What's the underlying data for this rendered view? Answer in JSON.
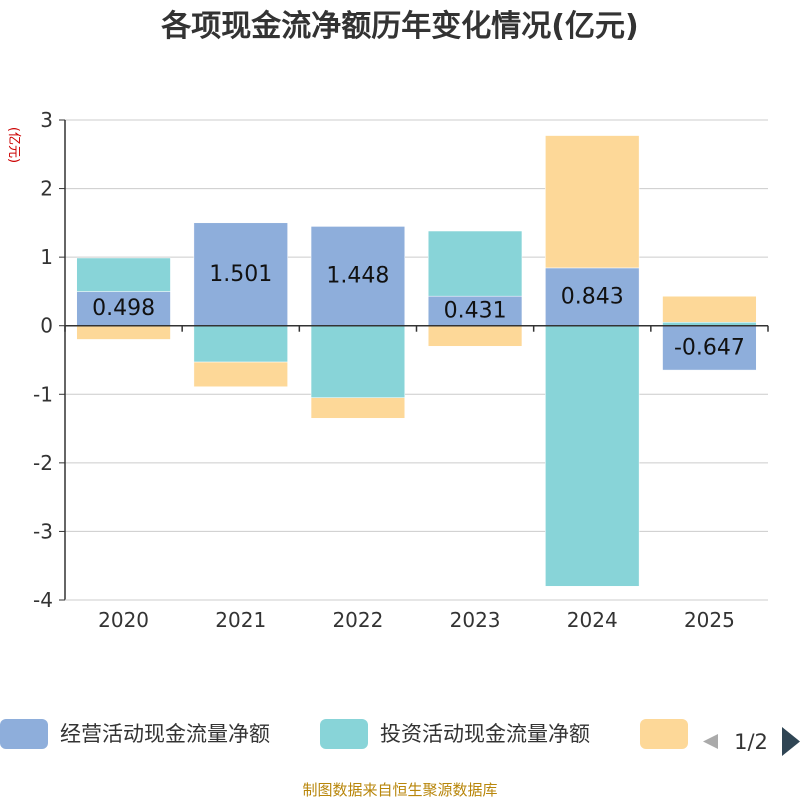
{
  "chart_data": {
    "type": "bar",
    "stacked": true,
    "title": "各项现金流净额历年变化情况(亿元)",
    "ylabel": "(亿元)",
    "xlabel": "",
    "categories": [
      "2020",
      "2021",
      "2022",
      "2023",
      "2024",
      "2025"
    ],
    "ylim": [
      -4,
      3
    ],
    "yticks": [
      3,
      2,
      1,
      0,
      -1,
      -2,
      -3,
      -4
    ],
    "series": [
      {
        "name": "经营活动现金流量净额",
        "color": "#8eaedb",
        "values": [
          0.498,
          1.501,
          1.448,
          0.431,
          0.843,
          -0.647
        ]
      },
      {
        "name": "投资活动现金流量净额",
        "color": "#88d4d8",
        "values": [
          0.49,
          -0.53,
          -1.05,
          0.95,
          -3.8,
          0.05
        ]
      },
      {
        "name": "",
        "color": "#fdd898",
        "values": [
          -0.2,
          -0.36,
          -0.3,
          -0.3,
          1.93,
          0.38
        ]
      }
    ],
    "data_labels": [
      "0.498",
      "1.501",
      "1.448",
      "0.431",
      "0.843",
      "-0.647"
    ],
    "legend_position": "bottom",
    "pager": "1/2"
  },
  "footer": "制图数据来自恒生聚源数据库",
  "colors": {
    "axis": "#333333",
    "grid": "#cccccc",
    "footer": "#b8860b",
    "ylabel": "#cc0000"
  },
  "icons": {
    "prev": "triangle-left-icon",
    "next": "triangle-right-icon"
  }
}
